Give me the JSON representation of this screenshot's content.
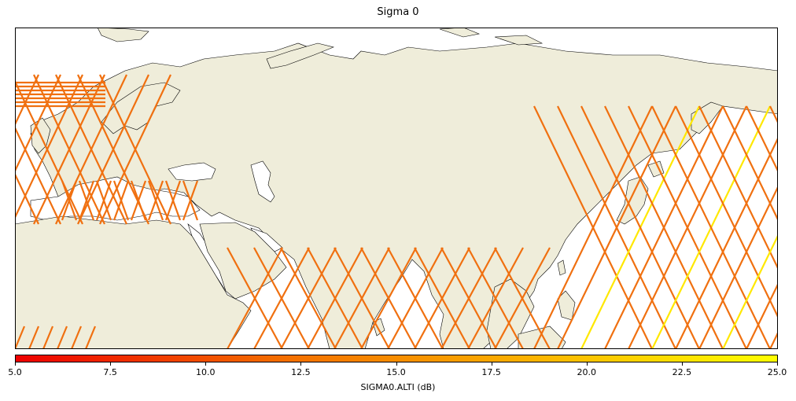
{
  "title": "Sigma 0",
  "colorbar": {
    "label": "SIGMA0.ALTI (dB)",
    "min": 5.0,
    "max": 25.0,
    "ticks": [
      "5.0",
      "7.5",
      "10.0",
      "12.5",
      "15.0",
      "17.5",
      "20.0",
      "22.5",
      "25.0"
    ],
    "colors": [
      "#ee0000",
      "#f36a00",
      "#fbb000",
      "#ffff00"
    ]
  },
  "map": {
    "land_color": "#efedda",
    "coast_color": "#000000",
    "track_color": "#f07010",
    "track_highlight": "#ffe800"
  }
}
